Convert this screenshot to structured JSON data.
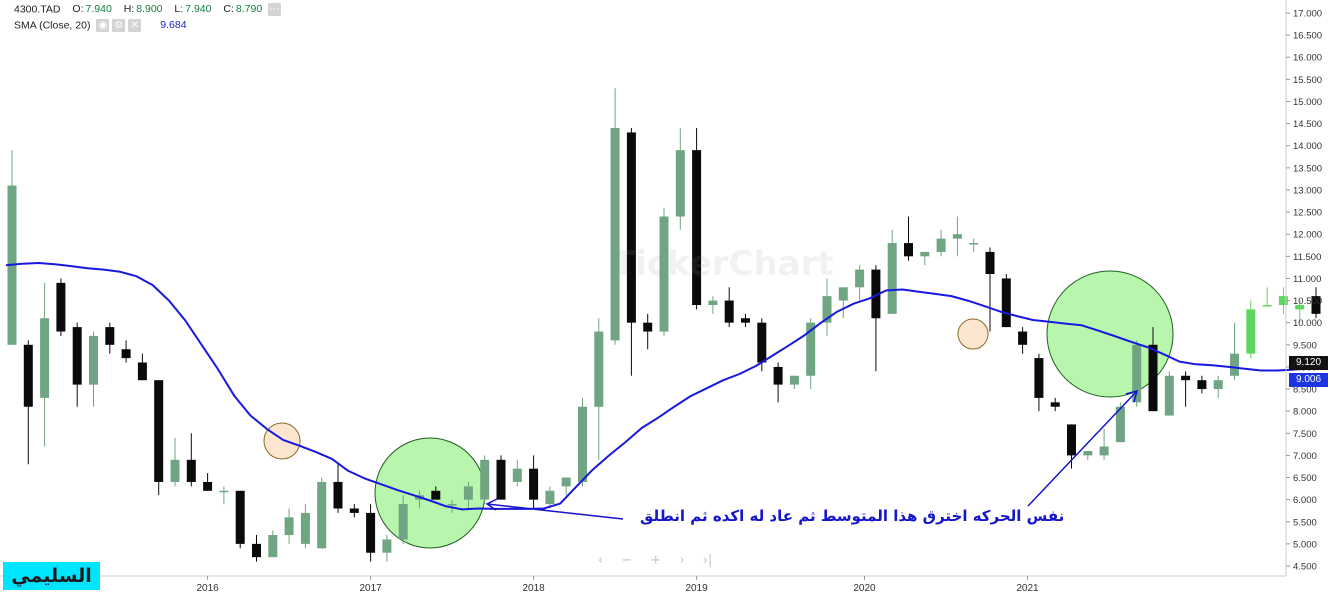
{
  "legend": {
    "symbol": "4300.TAD",
    "o_label": "O:",
    "o_value": "7.940",
    "h_label": "H:",
    "h_value": "8.900",
    "l_label": "L:",
    "l_value": "7.940",
    "c_label": "C:",
    "c_value": "8.790",
    "sma_label": "SMA  (Close, 20)",
    "sma_value": "9.684"
  },
  "price_tags": {
    "close": "9.120",
    "sma": "9.006"
  },
  "annotation_text": "نفس الحركه اخترق هذا المتوسط ثم عاد له اكده ثم انطلق",
  "author_badge": "السليمي",
  "watermark": "TickerChart",
  "nav_controls": [
    "‹",
    "−",
    "+",
    "›",
    "›|"
  ],
  "colors": {
    "up": "#6fa582",
    "up_highlight": "#5fd65f",
    "down": "#0a0a0a",
    "sma": "#1818e0",
    "circle_green": "#b8f5ad",
    "circle_orange": "#fce6cf",
    "grid_axis": "#cccccc"
  },
  "chart_data": {
    "type": "candlestick",
    "title": "4300.TAD",
    "y_axis_side": "right",
    "ylim": [
      4.5,
      17.0
    ],
    "y_ticks": [
      "17.000",
      "16.500",
      "16.000",
      "15.500",
      "15.000",
      "14.500",
      "14.000",
      "13.500",
      "13.000",
      "12.500",
      "12.000",
      "11.500",
      "11.000",
      "10.500",
      "10.000",
      "9.500",
      "9.000",
      "8.500",
      "8.000",
      "7.500",
      "7.000",
      "6.500",
      "6.000",
      "5.500",
      "5.000",
      "4.500"
    ],
    "x_labels": [
      {
        "year": "2016",
        "index": 12.0
      },
      {
        "year": "2017",
        "index": 22.0
      },
      {
        "year": "2018",
        "index": 32.0
      },
      {
        "year": "2019",
        "index": 42.0
      },
      {
        "year": "2020",
        "index": 52.3
      },
      {
        "year": "2021",
        "index": 62.3
      }
    ],
    "grid": false,
    "candles": [
      {
        "o": 9.5,
        "h": 13.9,
        "l": 9.5,
        "c": 13.1
      },
      {
        "o": 9.5,
        "h": 9.6,
        "l": 6.8,
        "c": 8.1
      },
      {
        "o": 8.3,
        "h": 10.9,
        "l": 7.2,
        "c": 10.1
      },
      {
        "o": 10.9,
        "h": 11.0,
        "l": 9.7,
        "c": 9.8
      },
      {
        "o": 9.9,
        "h": 10.0,
        "l": 8.1,
        "c": 8.6
      },
      {
        "o": 8.6,
        "h": 9.8,
        "l": 8.1,
        "c": 9.7
      },
      {
        "o": 9.9,
        "h": 10.0,
        "l": 9.3,
        "c": 9.5
      },
      {
        "o": 9.4,
        "h": 9.6,
        "l": 9.1,
        "c": 9.2
      },
      {
        "o": 9.1,
        "h": 9.3,
        "l": 8.7,
        "c": 8.7
      },
      {
        "o": 8.7,
        "h": 8.7,
        "l": 6.1,
        "c": 6.4
      },
      {
        "o": 6.4,
        "h": 7.4,
        "l": 6.3,
        "c": 6.9
      },
      {
        "o": 6.9,
        "h": 7.5,
        "l": 6.3,
        "c": 6.4
      },
      {
        "o": 6.4,
        "h": 6.6,
        "l": 6.2,
        "c": 6.2
      },
      {
        "o": 6.2,
        "h": 6.3,
        "l": 5.9,
        "c": 6.2
      },
      {
        "o": 6.2,
        "h": 6.2,
        "l": 4.9,
        "c": 5.0
      },
      {
        "o": 5.0,
        "h": 5.2,
        "l": 4.6,
        "c": 4.7
      },
      {
        "o": 4.7,
        "h": 5.3,
        "l": 4.7,
        "c": 5.2
      },
      {
        "o": 5.2,
        "h": 5.8,
        "l": 5.0,
        "c": 5.6
      },
      {
        "o": 5.0,
        "h": 5.9,
        "l": 4.9,
        "c": 5.7
      },
      {
        "o": 4.9,
        "h": 6.5,
        "l": 4.9,
        "c": 6.4
      },
      {
        "o": 6.4,
        "h": 6.8,
        "l": 5.7,
        "c": 5.8
      },
      {
        "o": 5.8,
        "h": 5.9,
        "l": 5.6,
        "c": 5.7
      },
      {
        "o": 5.7,
        "h": 5.9,
        "l": 4.6,
        "c": 4.8
      },
      {
        "o": 4.8,
        "h": 5.2,
        "l": 4.6,
        "c": 5.1
      },
      {
        "o": 5.1,
        "h": 6.1,
        "l": 5.0,
        "c": 5.9
      },
      {
        "o": 6.0,
        "h": 6.2,
        "l": 5.8,
        "c": 6.1
      },
      {
        "o": 6.2,
        "h": 6.3,
        "l": 6.0,
        "c": 6.0
      },
      {
        "o": 5.9,
        "h": 6.0,
        "l": 5.7,
        "c": 5.9
      },
      {
        "o": 6.0,
        "h": 6.4,
        "l": 5.8,
        "c": 6.3
      },
      {
        "o": 6.0,
        "h": 7.0,
        "l": 5.9,
        "c": 6.9
      },
      {
        "o": 6.9,
        "h": 7.0,
        "l": 6.1,
        "c": 6.0
      },
      {
        "o": 6.4,
        "h": 6.9,
        "l": 6.3,
        "c": 6.7
      },
      {
        "o": 6.7,
        "h": 7.0,
        "l": 5.8,
        "c": 6.0
      },
      {
        "o": 5.9,
        "h": 6.3,
        "l": 5.8,
        "c": 6.2
      },
      {
        "o": 6.3,
        "h": 6.5,
        "l": 6.1,
        "c": 6.5
      },
      {
        "o": 6.4,
        "h": 8.3,
        "l": 6.3,
        "c": 8.1
      },
      {
        "o": 8.1,
        "h": 10.1,
        "l": 6.9,
        "c": 9.8
      },
      {
        "o": 9.6,
        "h": 15.3,
        "l": 9.5,
        "c": 14.4
      },
      {
        "o": 14.3,
        "h": 14.4,
        "l": 8.8,
        "c": 10.0
      },
      {
        "o": 10.0,
        "h": 10.2,
        "l": 9.4,
        "c": 9.8
      },
      {
        "o": 9.8,
        "h": 12.6,
        "l": 9.7,
        "c": 12.4
      },
      {
        "o": 12.4,
        "h": 14.4,
        "l": 12.1,
        "c": 13.9
      },
      {
        "o": 13.9,
        "h": 14.4,
        "l": 10.3,
        "c": 10.4
      },
      {
        "o": 10.4,
        "h": 10.6,
        "l": 10.2,
        "c": 10.5
      },
      {
        "o": 10.5,
        "h": 10.8,
        "l": 9.9,
        "c": 10.0
      },
      {
        "o": 10.1,
        "h": 10.2,
        "l": 9.9,
        "c": 10.0
      },
      {
        "o": 10.0,
        "h": 10.1,
        "l": 8.9,
        "c": 9.1
      },
      {
        "o": 9.0,
        "h": 9.1,
        "l": 8.2,
        "c": 8.6
      },
      {
        "o": 8.6,
        "h": 8.8,
        "l": 8.5,
        "c": 8.8
      },
      {
        "o": 8.8,
        "h": 10.1,
        "l": 8.5,
        "c": 10.0
      },
      {
        "o": 10.0,
        "h": 11.0,
        "l": 9.7,
        "c": 10.6
      },
      {
        "o": 10.5,
        "h": 10.8,
        "l": 10.1,
        "c": 10.8
      },
      {
        "o": 10.8,
        "h": 11.3,
        "l": 10.5,
        "c": 11.2
      },
      {
        "o": 11.2,
        "h": 11.3,
        "l": 8.9,
        "c": 10.1
      },
      {
        "o": 10.2,
        "h": 12.1,
        "l": 10.2,
        "c": 11.8
      },
      {
        "o": 11.8,
        "h": 12.4,
        "l": 11.4,
        "c": 11.5
      },
      {
        "o": 11.5,
        "h": 11.6,
        "l": 11.3,
        "c": 11.6
      },
      {
        "o": 11.6,
        "h": 12.1,
        "l": 11.5,
        "c": 11.9
      },
      {
        "o": 11.9,
        "h": 12.4,
        "l": 11.5,
        "c": 12.0
      },
      {
        "o": 11.8,
        "h": 11.9,
        "l": 11.6,
        "c": 11.8
      },
      {
        "o": 11.6,
        "h": 11.7,
        "l": 9.8,
        "c": 11.1
      },
      {
        "o": 11.0,
        "h": 11.1,
        "l": 9.9,
        "c": 9.9
      },
      {
        "o": 9.8,
        "h": 9.9,
        "l": 9.3,
        "c": 9.5
      },
      {
        "o": 9.2,
        "h": 9.3,
        "l": 8.0,
        "c": 8.3
      },
      {
        "o": 8.2,
        "h": 8.3,
        "l": 8.0,
        "c": 8.1
      },
      {
        "o": 7.7,
        "h": 7.7,
        "l": 6.7,
        "c": 7.0
      },
      {
        "o": 7.0,
        "h": 7.0,
        "l": 6.9,
        "c": 7.1
      },
      {
        "o": 7.0,
        "h": 7.6,
        "l": 6.9,
        "c": 7.2
      },
      {
        "o": 7.3,
        "h": 8.2,
        "l": 7.3,
        "c": 8.1
      },
      {
        "o": 8.2,
        "h": 9.6,
        "l": 8.1,
        "c": 9.5
      },
      {
        "o": 9.5,
        "h": 9.9,
        "l": 8.0,
        "c": 8.0
      },
      {
        "o": 7.9,
        "h": 8.9,
        "l": 7.9,
        "c": 8.8
      },
      {
        "o": 8.8,
        "h": 8.9,
        "l": 8.1,
        "c": 8.7
      },
      {
        "o": 8.7,
        "h": 8.8,
        "l": 8.4,
        "c": 8.5
      },
      {
        "o": 8.5,
        "h": 8.8,
        "l": 8.3,
        "c": 8.7
      },
      {
        "o": 8.8,
        "h": 10.0,
        "l": 8.7,
        "c": 9.3
      },
      {
        "o": 9.3,
        "h": 10.5,
        "l": 9.2,
        "c": 10.3
      },
      {
        "o": 10.4,
        "h": 10.8,
        "l": 10.4,
        "c": 10.4
      },
      {
        "o": 10.4,
        "h": 10.8,
        "l": 10.2,
        "c": 10.6
      },
      {
        "o": 10.3,
        "h": 10.5,
        "l": 10.0,
        "c": 10.4
      },
      {
        "o": 10.6,
        "h": 10.8,
        "l": 10.1,
        "c": 10.2
      },
      {
        "o": 10.3,
        "h": 10.4,
        "l": 10.1,
        "c": 10.3
      },
      {
        "o": 10.3,
        "h": 10.4,
        "l": 9.6,
        "c": 9.9
      },
      {
        "o": 9.9,
        "h": 10.0,
        "l": 9.1,
        "c": 9.1
      }
    ],
    "sma_20": [
      11.3,
      11.33,
      11.35,
      11.32,
      11.28,
      11.23,
      11.2,
      11.15,
      11.05,
      10.85,
      10.5,
      10.05,
      9.5,
      8.95,
      8.35,
      7.9,
      7.6,
      7.35,
      7.22,
      7.08,
      6.92,
      6.65,
      6.48,
      6.35,
      6.22,
      6.1,
      5.98,
      5.85,
      5.78,
      5.8,
      5.79,
      5.79,
      5.79,
      5.8,
      5.91,
      6.3,
      6.68,
      7.0,
      7.3,
      7.62,
      7.85,
      8.1,
      8.34,
      8.52,
      8.7,
      8.84,
      9.02,
      9.25,
      9.48,
      9.72,
      10.0,
      10.25,
      10.43,
      10.55,
      10.73,
      10.75,
      10.7,
      10.65,
      10.6,
      10.5,
      10.38,
      10.25,
      10.15,
      10.06,
      10.02,
      9.98,
      9.94,
      9.82,
      9.7,
      9.57,
      9.45,
      9.29,
      9.12,
      9.06,
      9.04,
      9.0,
      8.96,
      8.92,
      8.92,
      8.94,
      8.97,
      9.01
    ]
  }
}
